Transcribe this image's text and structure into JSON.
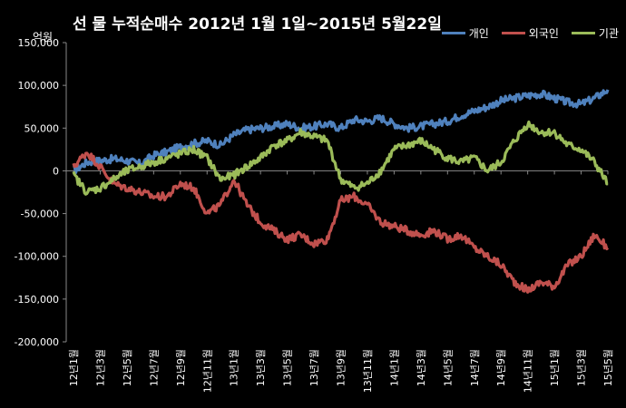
{
  "chart_data": {
    "type": "line",
    "title": "선 물 누적순매수 2012년 1월 1일~2015년 5월22일",
    "ylabel": "억원",
    "ylim": [
      -200000,
      150000
    ],
    "yticks": [
      150000,
      100000,
      50000,
      0,
      -50000,
      -100000,
      -150000,
      -200000
    ],
    "ytick_labels": [
      "150,000",
      "100,000",
      "50,000",
      "0",
      "-50,000",
      "-100,000",
      "-150,000",
      "-200,000"
    ],
    "x_tick_labels": [
      "12년1월",
      "12년3월",
      "12년5월",
      "12년7월",
      "12년9월",
      "12년11월",
      "13년1월",
      "13년3월",
      "13년5월",
      "13년7월",
      "13년9월",
      "13년11월",
      "14년1월",
      "14년3월",
      "14년5월",
      "14년7월",
      "14년9월",
      "14년11월",
      "15년1월",
      "15년3월",
      "15년5월"
    ],
    "grid": false,
    "legend_position": "top-right",
    "x_points": [
      "12년1월",
      "12년2월",
      "12년3월",
      "12년4월",
      "12년5월",
      "12년6월",
      "12년7월",
      "12년8월",
      "12년9월",
      "12년10월",
      "12년11월",
      "12년12월",
      "13년1월",
      "13년2월",
      "13년3월",
      "13년4월",
      "13년5월",
      "13년6월",
      "13년7월",
      "13년8월",
      "13년9월",
      "13년10월",
      "13년11월",
      "13년12월",
      "14년1월",
      "14년2월",
      "14년3월",
      "14년4월",
      "14년5월",
      "14년6월",
      "14년7월",
      "14년8월",
      "14년9월",
      "14년10월",
      "14년11월",
      "14년12월",
      "15년1월",
      "15년2월",
      "15년3월",
      "15년4월",
      "15년5월"
    ],
    "series": [
      {
        "name": "개인",
        "color": "#4f81bd",
        "values": [
          0,
          10000,
          12000,
          14000,
          12000,
          8000,
          18000,
          22000,
          28000,
          32000,
          35000,
          30000,
          42000,
          48000,
          50000,
          52000,
          55000,
          50000,
          52000,
          55000,
          50000,
          60000,
          58000,
          62000,
          55000,
          50000,
          52000,
          55000,
          58000,
          65000,
          70000,
          75000,
          82000,
          85000,
          88000,
          90000,
          85000,
          80000,
          78000,
          85000,
          95000
        ]
      },
      {
        "name": "외국인",
        "color": "#c0504d",
        "values": [
          5000,
          22000,
          5000,
          -15000,
          -20000,
          -25000,
          -30000,
          -30000,
          -15000,
          -20000,
          -50000,
          -40000,
          -10000,
          -40000,
          -60000,
          -70000,
          -80000,
          -75000,
          -85000,
          -80000,
          -35000,
          -30000,
          -40000,
          -60000,
          -65000,
          -70000,
          -75000,
          -70000,
          -80000,
          -75000,
          -90000,
          -100000,
          -110000,
          -130000,
          -140000,
          -130000,
          -135000,
          -110000,
          -100000,
          -75000,
          -90000
        ]
      },
      {
        "name": "기관",
        "color": "#9bbb59",
        "values": [
          -5000,
          -25000,
          -20000,
          -10000,
          0,
          5000,
          10000,
          15000,
          20000,
          25000,
          15000,
          -10000,
          -5000,
          5000,
          15000,
          30000,
          35000,
          45000,
          40000,
          35000,
          -10000,
          -20000,
          -15000,
          0,
          25000,
          30000,
          35000,
          25000,
          15000,
          10000,
          15000,
          0,
          10000,
          35000,
          55000,
          45000,
          45000,
          30000,
          25000,
          10000,
          -15000
        ]
      }
    ]
  }
}
